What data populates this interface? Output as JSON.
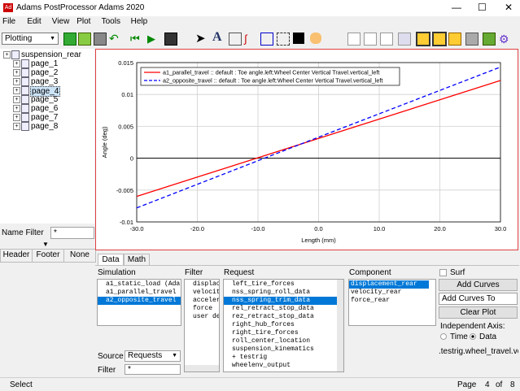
{
  "window": {
    "title": "Adams PostProcessor Adams 2020"
  },
  "menu": [
    "File",
    "Edit",
    "View",
    "Plot",
    "Tools",
    "Help"
  ],
  "toolbar": {
    "mode": "Plotting"
  },
  "tree": {
    "items": [
      "suspension_rear",
      "page_1",
      "page_2",
      "page_3",
      "page_4",
      "page_5",
      "page_6",
      "page_7",
      "page_8"
    ],
    "selected": 4
  },
  "name_filter": {
    "label": "Name Filter",
    "value": "*"
  },
  "header_tabs": [
    "Header",
    "Footer",
    "None"
  ],
  "plot": {
    "type": "line",
    "xlabel": "Length (mm)",
    "ylabel": "Angle (deg)",
    "x": [
      -30,
      0,
      30
    ],
    "series": [
      {
        "name": "a1_parallel_travel :: default : Toe angle.left:Wheel Center Vertical Travel.vertical_left",
        "color": "#ff0000",
        "dashed": false,
        "values": [
          -0.006,
          0.0031,
          0.0122
        ]
      },
      {
        "name": "a2_opposite_travel :: default : Toe angle.left:Wheel Center Vertical Travel.vertical_left",
        "color": "#0000ff",
        "dashed": true,
        "values": [
          -0.0078,
          0.0033,
          0.0143
        ]
      }
    ],
    "xlim": [
      -30,
      30
    ],
    "ylim": [
      -0.01,
      0.015
    ],
    "xticks": [
      {
        "value": -30,
        "label": "-30.0"
      },
      {
        "value": -20,
        "label": "-20.0"
      },
      {
        "value": -10,
        "label": "-10.0"
      },
      {
        "value": 0,
        "label": "0.0"
      },
      {
        "value": 10,
        "label": "10.0"
      },
      {
        "value": 20,
        "label": "20.0"
      },
      {
        "value": 30,
        "label": "30.0"
      }
    ],
    "yticks": [
      0.015,
      0.01,
      0.005,
      0,
      -0.005,
      -0.01
    ],
    "grid": true
  },
  "tabs": [
    "Data",
    "Math"
  ],
  "browser": {
    "simulation": {
      "label": "Simulation",
      "items": [
        "a1_static_load  (Ada",
        "a1_parallel_travel",
        "a2_opposite_travel"
      ],
      "selected": 2
    },
    "filter": {
      "label": "Filter",
      "items": [
        "displaceme",
        "velocity",
        "accelerati",
        "force",
        "user defir"
      ],
      "selected": -1
    },
    "request": {
      "label": "Request",
      "items": [
        "left_tire_forces",
        "nss_spring_roll_data",
        "nss_spring_trim_data",
        "rel_retract_stop_data",
        "rez_retract_stop_data",
        "right_hub_forces",
        "right_tire_forces",
        "roll_center_location",
        "suspension_kinematics",
        "+ testrig",
        "wheelenv_output"
      ],
      "selected": 2
    },
    "component": {
      "label": "Component",
      "items": [
        "displacement_rear",
        "velocity_rear",
        "force_rear"
      ],
      "selected": 0
    }
  },
  "source": {
    "label": "Source",
    "value": "Requests"
  },
  "filter_field": {
    "label": "Filter",
    "value": "*"
  },
  "options": {
    "surf": "Surf",
    "add_curves": "Add Curves",
    "add_mode": "Add Curves To Current",
    "clear": "Clear Plot",
    "axis_label": "Independent Axis:",
    "time": "Time",
    "data": "Data",
    "axis_value": ".testrig.wheel_travel.vertica"
  },
  "status": {
    "text": "Select",
    "page_label": "Page",
    "page": 4,
    "of": "of",
    "total": 8
  }
}
